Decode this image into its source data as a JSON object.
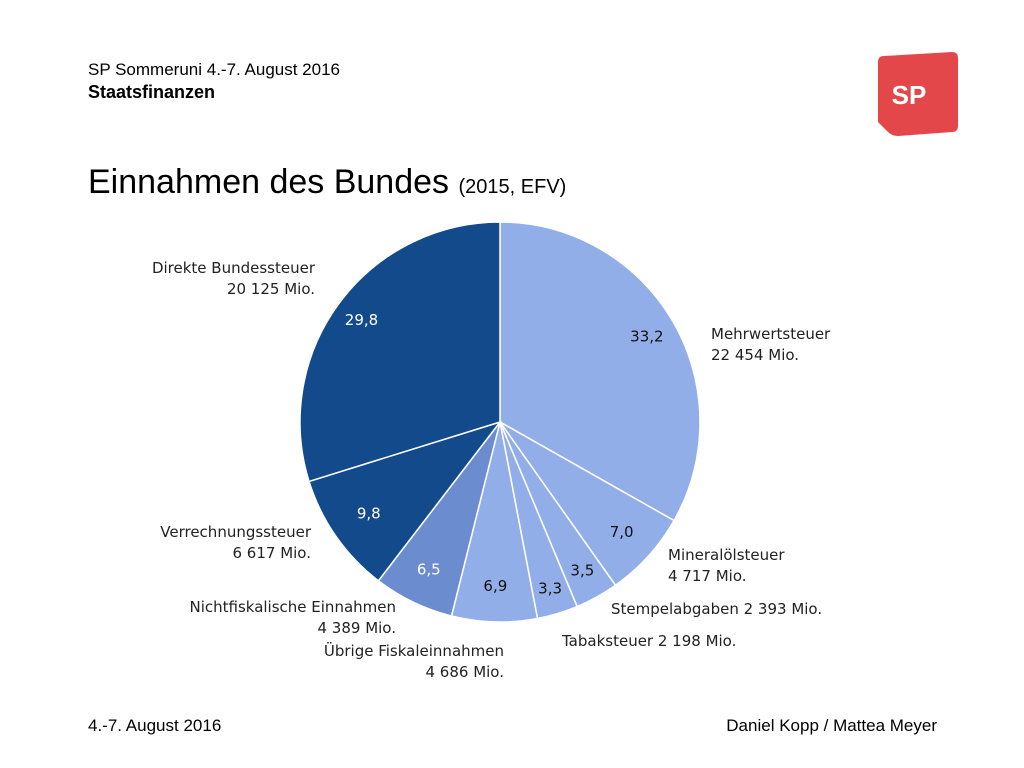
{
  "header": {
    "event": "SP Sommeruni 4.-7. August 2016",
    "topic": "Staatsfinanzen",
    "title_main": "Einnahmen des Bundes",
    "title_sub": "(2015, EFV)",
    "logo_text": "SP"
  },
  "footer": {
    "date": "4.-7. August 2016",
    "authors": "Daniel Kopp / Mattea Meyer"
  },
  "colors": {
    "logo": "#e4474a",
    "dark_blue": "#134a8c",
    "mid_blue": "#6b8ccf",
    "light_blue": "#92aee8"
  },
  "chart_data": {
    "type": "pie",
    "slices": [
      {
        "pct": "33,2",
        "value": 33.2,
        "name": "Mehrwertsteuer",
        "amount": "22 454 Mio.",
        "color": "#92aee8"
      },
      {
        "pct": "7,0",
        "value": 7.0,
        "name": "Mineralölsteuer",
        "amount": "4 717 Mio.",
        "color": "#92aee8"
      },
      {
        "pct": "3,5",
        "value": 3.5,
        "name": "Stempelabgaben 2 393 Mio.",
        "amount": "",
        "color": "#92aee8"
      },
      {
        "pct": "3,3",
        "value": 3.3,
        "name": "Tabaksteuer 2 198 Mio.",
        "amount": "",
        "color": "#92aee8"
      },
      {
        "pct": "6,9",
        "value": 6.9,
        "name": "Übrige Fiskaleinnahmen",
        "amount": "4 686 Mio.",
        "color": "#92aee8"
      },
      {
        "pct": "6,5",
        "value": 6.5,
        "name": "Nichtfiskalische Einnahmen",
        "amount": "4 389 Mio.",
        "color": "#6b8ccf"
      },
      {
        "pct": "9,8",
        "value": 9.8,
        "name": "Verrechnungssteuer",
        "amount": "6 617 Mio.",
        "color": "#134a8c"
      },
      {
        "pct": "29,8",
        "value": 29.8,
        "name": "Direkte Bundessteuer",
        "amount": "20 125 Mio.",
        "color": "#134a8c"
      }
    ]
  }
}
